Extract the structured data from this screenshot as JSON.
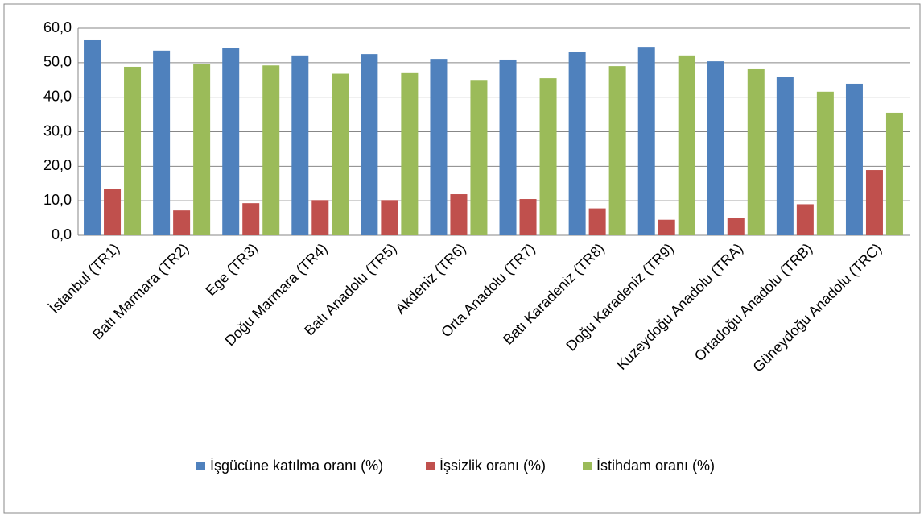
{
  "chart_data": {
    "type": "bar",
    "categories": [
      "İstanbul (TR1)",
      "Batı Marmara (TR2)",
      "Ege (TR3)",
      "Doğu Marmara (TR4)",
      "Batı Anadolu (TR5)",
      "Akdeniz (TR6)",
      "Orta Anadolu (TR7)",
      "Batı Karadeniz (TR8)",
      "Doğu Karadeniz (TR9)",
      "Kuzeydoğu Anadolu (TRA)",
      "Ortadoğu Anadolu (TRB)",
      "Güneydoğu Anadolu (TRC)"
    ],
    "series": [
      {
        "name": "İşgücüne katılma oranı (%)",
        "color": "#4f81bd",
        "values": [
          56.5,
          53.5,
          54.2,
          52.1,
          52.5,
          51.1,
          50.9,
          53.0,
          54.6,
          50.4,
          45.8,
          43.9
        ]
      },
      {
        "name": "İşsizlik oranı (%)",
        "color": "#c0504d",
        "values": [
          13.5,
          7.2,
          9.3,
          10.2,
          10.2,
          11.9,
          10.5,
          7.8,
          4.5,
          5.0,
          9.0,
          18.9
        ]
      },
      {
        "name": "İstihdam oranı (%)",
        "color": "#9bbb59",
        "values": [
          48.8,
          49.5,
          49.2,
          46.8,
          47.2,
          45.0,
          45.5,
          49.0,
          52.1,
          48.1,
          41.6,
          35.5
        ]
      }
    ],
    "ylim": [
      0,
      60
    ],
    "yticks": [
      {
        "value": 0,
        "label": "0,0"
      },
      {
        "value": 10,
        "label": "10,0"
      },
      {
        "value": 20,
        "label": "20,0"
      },
      {
        "value": 30,
        "label": "30,0"
      },
      {
        "value": 40,
        "label": "40,0"
      },
      {
        "value": 50,
        "label": "50,0"
      },
      {
        "value": 60,
        "label": "60,0"
      }
    ],
    "grid": true,
    "legend": "bottom"
  }
}
